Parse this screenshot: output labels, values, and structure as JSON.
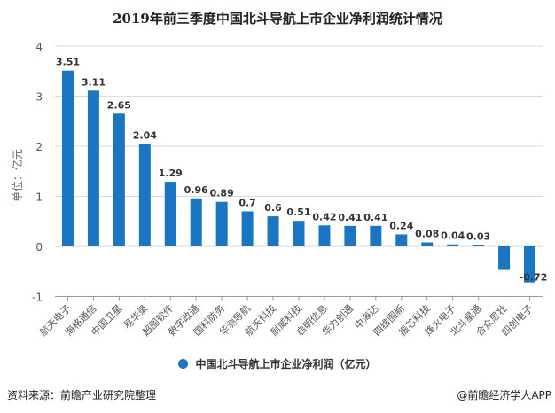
{
  "title": "2019年前三季度中国北斗导航上市企业净利润统计情况",
  "source": "资料来源：前瞻产业研究院整理",
  "credit": "@前瞻经济学人APP",
  "chart_data": {
    "type": "bar",
    "title": "2019年前三季度中国北斗导航上市企业净利润统计情况",
    "xlabel": "",
    "ylabel": "单位：亿元",
    "ylim": [
      -1,
      4
    ],
    "yticks": [
      -1,
      0,
      1,
      2,
      3,
      4
    ],
    "grid": true,
    "legend_position": "bottom",
    "bar_color": "#1a75c2",
    "categories": [
      "航天电子",
      "海格通信",
      "中国卫星",
      "易华录",
      "超图软件",
      "数字政通",
      "国科防务",
      "华测导航",
      "航天科技",
      "耐威科技",
      "启明信息",
      "华力创通",
      "中海达",
      "四维图新",
      "振芯科技",
      "烽火电子",
      "北斗星通",
      "合众思壮",
      "四创电子"
    ],
    "series": [
      {
        "name": "中国北斗导航上市企业净利润（亿元）",
        "values": [
          3.51,
          3.11,
          2.65,
          2.04,
          1.29,
          0.96,
          0.89,
          0.7,
          0.6,
          0.51,
          0.42,
          0.41,
          0.41,
          0.24,
          0.08,
          0.04,
          0.03,
          -0.47,
          -0.72
        ],
        "labels": [
          "3.51",
          "3.11",
          "2.65",
          "2.04",
          "1.29",
          "0.96",
          "0.89",
          "0.7",
          "0.6",
          "0.51",
          "0.42",
          "0.41",
          "0.41",
          "0.24",
          "0.08",
          "0.04",
          "0.03",
          "",
          "-0.72"
        ]
      }
    ]
  }
}
